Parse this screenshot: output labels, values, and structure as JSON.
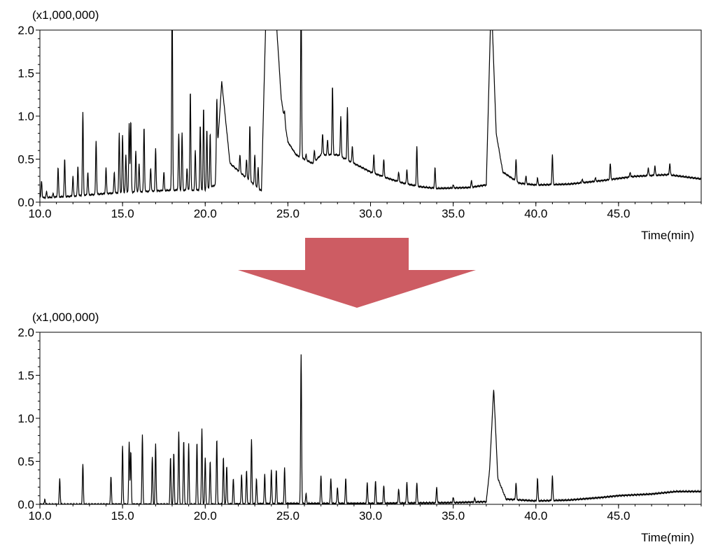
{
  "chart_data": [
    {
      "type": "line",
      "name": "",
      "scale_label": "(x1,000,000)",
      "xlabel": "Time(min)",
      "ylabel": "",
      "xlim": [
        10.0,
        50.0
      ],
      "ylim": [
        0.0,
        2.0
      ],
      "x_ticks": [
        "10.0",
        "15.0",
        "20.0",
        "25.0",
        "30.0",
        "35.0",
        "40.0",
        "45.0"
      ],
      "y_ticks": [
        "0.0",
        "0.5",
        "1.0",
        "1.5",
        "2.0"
      ],
      "grid": false,
      "line_color": "#000000",
      "baseline": [
        [
          10.0,
          0.05
        ],
        [
          12.0,
          0.07
        ],
        [
          14.0,
          0.1
        ],
        [
          16.0,
          0.12
        ],
        [
          18.0,
          0.14
        ],
        [
          20.0,
          0.14
        ],
        [
          20.6,
          0.2
        ],
        [
          21.0,
          1.4
        ],
        [
          21.5,
          0.45
        ],
        [
          22.5,
          0.28
        ],
        [
          23.4,
          0.13
        ],
        [
          23.7,
          2.4
        ],
        [
          24.2,
          2.4
        ],
        [
          24.6,
          1.2
        ],
        [
          25.0,
          0.7
        ],
        [
          25.5,
          0.55
        ],
        [
          26.5,
          0.45
        ],
        [
          27.0,
          0.55
        ],
        [
          28.0,
          0.55
        ],
        [
          29.0,
          0.45
        ],
        [
          30.0,
          0.35
        ],
        [
          31.0,
          0.28
        ],
        [
          32.0,
          0.22
        ],
        [
          33.0,
          0.18
        ],
        [
          34.0,
          0.16
        ],
        [
          36.0,
          0.17
        ],
        [
          37.0,
          0.2
        ],
        [
          37.3,
          2.4
        ],
        [
          37.6,
          0.8
        ],
        [
          38.0,
          0.35
        ],
        [
          39.0,
          0.22
        ],
        [
          40.0,
          0.2
        ],
        [
          42.0,
          0.21
        ],
        [
          44.0,
          0.25
        ],
        [
          46.0,
          0.3
        ],
        [
          48.0,
          0.32
        ],
        [
          50.0,
          0.27
        ]
      ],
      "peaks": [
        [
          10.1,
          0.25
        ],
        [
          10.4,
          0.12
        ],
        [
          10.8,
          0.1
        ],
        [
          11.1,
          0.4
        ],
        [
          11.5,
          0.5
        ],
        [
          12.0,
          0.3
        ],
        [
          12.3,
          0.42
        ],
        [
          12.6,
          1.05
        ],
        [
          12.9,
          0.35
        ],
        [
          13.4,
          0.72
        ],
        [
          14.0,
          0.4
        ],
        [
          14.5,
          0.35
        ],
        [
          14.8,
          0.8
        ],
        [
          15.0,
          0.78
        ],
        [
          15.2,
          0.55
        ],
        [
          15.4,
          0.92
        ],
        [
          15.5,
          0.95
        ],
        [
          15.8,
          0.6
        ],
        [
          16.0,
          0.45
        ],
        [
          16.3,
          0.88
        ],
        [
          16.7,
          0.4
        ],
        [
          17.0,
          0.62
        ],
        [
          17.5,
          0.35
        ],
        [
          18.0,
          2.4
        ],
        [
          18.4,
          0.8
        ],
        [
          18.6,
          0.8
        ],
        [
          18.9,
          0.4
        ],
        [
          19.1,
          1.3
        ],
        [
          19.4,
          0.6
        ],
        [
          19.7,
          0.9
        ],
        [
          19.9,
          1.1
        ],
        [
          20.1,
          0.85
        ],
        [
          20.3,
          0.8
        ],
        [
          20.7,
          1.2
        ],
        [
          21.1,
          1.0
        ],
        [
          21.3,
          0.75
        ],
        [
          22.1,
          0.55
        ],
        [
          22.5,
          0.5
        ],
        [
          22.7,
          0.9
        ],
        [
          23.0,
          0.55
        ],
        [
          23.2,
          0.4
        ],
        [
          24.8,
          1.05
        ],
        [
          25.8,
          2.4
        ],
        [
          26.1,
          0.55
        ],
        [
          26.6,
          0.6
        ],
        [
          27.1,
          0.8
        ],
        [
          27.4,
          0.72
        ],
        [
          27.7,
          1.35
        ],
        [
          28.2,
          1.0
        ],
        [
          28.6,
          1.1
        ],
        [
          28.9,
          0.65
        ],
        [
          29.5,
          0.4
        ],
        [
          30.2,
          0.55
        ],
        [
          30.8,
          0.5
        ],
        [
          31.7,
          0.35
        ],
        [
          32.2,
          0.38
        ],
        [
          32.8,
          0.65
        ],
        [
          33.9,
          0.4
        ],
        [
          35.0,
          0.2
        ],
        [
          36.1,
          0.25
        ],
        [
          38.8,
          0.5
        ],
        [
          39.4,
          0.3
        ],
        [
          40.1,
          0.28
        ],
        [
          41.0,
          0.55
        ],
        [
          42.8,
          0.27
        ],
        [
          43.6,
          0.28
        ],
        [
          44.5,
          0.45
        ],
        [
          45.7,
          0.35
        ],
        [
          46.8,
          0.4
        ],
        [
          47.2,
          0.42
        ],
        [
          48.1,
          0.45
        ]
      ]
    },
    {
      "type": "line",
      "name": "",
      "scale_label": "(x1,000,000)",
      "xlabel": "Time(min)",
      "ylabel": "",
      "xlim": [
        10.0,
        50.0
      ],
      "ylim": [
        0.0,
        2.0
      ],
      "x_ticks": [
        "10.0",
        "15.0",
        "20.0",
        "25.0",
        "30.0",
        "35.0",
        "40.0",
        "45.0"
      ],
      "y_ticks": [
        "0.0",
        "0.5",
        "1.0",
        "1.5",
        "2.0"
      ],
      "grid": false,
      "line_color": "#000000",
      "baseline": [
        [
          10.0,
          0.0
        ],
        [
          20.0,
          0.0
        ],
        [
          25.0,
          0.01
        ],
        [
          30.0,
          0.01
        ],
        [
          35.0,
          0.02
        ],
        [
          37.0,
          0.03
        ],
        [
          37.2,
          0.4
        ],
        [
          37.45,
          1.35
        ],
        [
          37.7,
          0.3
        ],
        [
          38.2,
          0.06
        ],
        [
          40.0,
          0.04
        ],
        [
          42.0,
          0.05
        ],
        [
          44.0,
          0.08
        ],
        [
          45.0,
          0.1
        ],
        [
          47.0,
          0.12
        ],
        [
          48.5,
          0.15
        ],
        [
          50.0,
          0.15
        ]
      ],
      "peaks": [
        [
          10.3,
          0.06
        ],
        [
          11.2,
          0.3
        ],
        [
          12.6,
          0.47
        ],
        [
          14.3,
          0.33
        ],
        [
          15.0,
          0.68
        ],
        [
          15.4,
          0.73
        ],
        [
          15.5,
          0.62
        ],
        [
          16.2,
          0.81
        ],
        [
          16.8,
          0.55
        ],
        [
          17.0,
          0.7
        ],
        [
          17.9,
          0.55
        ],
        [
          18.1,
          0.6
        ],
        [
          18.4,
          0.85
        ],
        [
          18.7,
          0.75
        ],
        [
          19.0,
          0.7
        ],
        [
          19.5,
          0.72
        ],
        [
          19.8,
          0.88
        ],
        [
          20.0,
          0.55
        ],
        [
          20.3,
          0.5
        ],
        [
          20.7,
          0.76
        ],
        [
          21.1,
          0.55
        ],
        [
          21.3,
          0.45
        ],
        [
          21.7,
          0.3
        ],
        [
          22.2,
          0.35
        ],
        [
          22.5,
          0.4
        ],
        [
          22.8,
          0.75
        ],
        [
          23.1,
          0.3
        ],
        [
          23.6,
          0.35
        ],
        [
          24.0,
          0.4
        ],
        [
          24.3,
          0.4
        ],
        [
          24.8,
          0.42
        ],
        [
          25.8,
          1.75
        ],
        [
          26.1,
          0.12
        ],
        [
          27.0,
          0.33
        ],
        [
          27.6,
          0.3
        ],
        [
          28.0,
          0.2
        ],
        [
          28.5,
          0.3
        ],
        [
          29.8,
          0.25
        ],
        [
          30.3,
          0.27
        ],
        [
          30.8,
          0.22
        ],
        [
          31.7,
          0.18
        ],
        [
          32.2,
          0.26
        ],
        [
          32.8,
          0.25
        ],
        [
          34.0,
          0.2
        ],
        [
          35.0,
          0.08
        ],
        [
          36.3,
          0.07
        ],
        [
          37.3,
          0.75
        ],
        [
          38.8,
          0.25
        ],
        [
          40.1,
          0.3
        ],
        [
          41.0,
          0.33
        ]
      ]
    }
  ],
  "arrow": {
    "color": "#cd5c63"
  }
}
